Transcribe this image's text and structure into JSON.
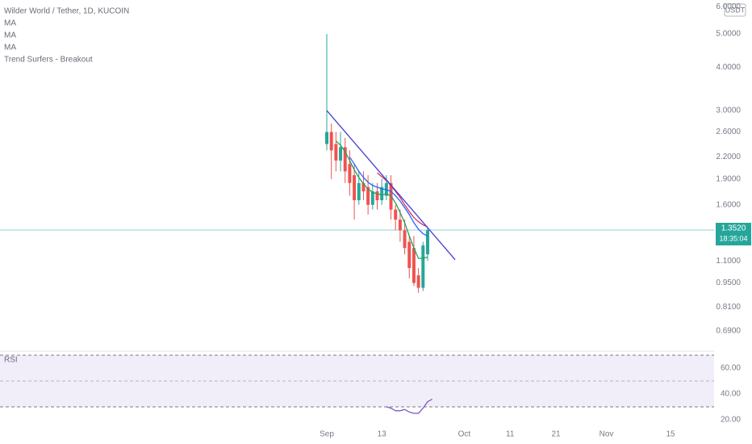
{
  "chart_data": [
    {
      "type": "candlestick",
      "title": "Wilder World / Tether, 1D, KUCOIN",
      "indicators": [
        "MA",
        "MA",
        "MA",
        "Trend Surfers - Breakout"
      ],
      "currency": "USDT",
      "log_scale": true,
      "x": [
        0,
        1,
        2,
        3,
        4,
        5,
        6,
        7,
        8,
        9,
        10,
        11,
        12,
        13,
        14,
        15,
        16,
        17,
        18,
        19,
        20,
        21,
        22
      ],
      "open": [
        2.4,
        2.6,
        2.4,
        2.15,
        2.35,
        2.1,
        1.95,
        1.65,
        1.85,
        1.8,
        1.6,
        1.75,
        1.65,
        1.7,
        1.85,
        1.55,
        1.45,
        1.35,
        1.25,
        1.2,
        1.0,
        0.92,
        1.15
      ],
      "high": [
        5.0,
        2.75,
        2.6,
        2.6,
        2.5,
        2.3,
        2.1,
        2.0,
        2.0,
        1.95,
        1.85,
        1.85,
        1.9,
        1.95,
        1.95,
        1.6,
        1.55,
        1.45,
        1.3,
        1.3,
        1.05,
        1.25,
        1.37
      ],
      "low": [
        2.3,
        1.9,
        2.0,
        2.0,
        1.85,
        1.7,
        1.45,
        1.6,
        1.65,
        1.5,
        1.55,
        1.55,
        1.6,
        1.65,
        1.45,
        1.35,
        1.25,
        1.15,
        0.98,
        0.93,
        0.89,
        0.9,
        1.1
      ],
      "close": [
        2.6,
        2.3,
        2.15,
        2.35,
        2.0,
        1.85,
        1.65,
        1.85,
        1.75,
        1.6,
        1.75,
        1.65,
        1.8,
        1.85,
        1.55,
        1.45,
        1.35,
        1.2,
        1.05,
        0.95,
        0.92,
        1.22,
        1.352
      ],
      "up_color": "#26a69a",
      "down_color": "#ef5350",
      "series": [
        {
          "color": "#22a05a",
          "values": [
            null,
            null,
            2.45,
            2.38,
            2.28,
            2.15,
            2.02,
            1.92,
            1.84,
            1.78,
            1.74,
            1.72,
            1.71,
            1.72,
            1.7,
            1.62,
            1.52,
            1.42,
            1.3,
            1.2,
            1.12,
            1.12,
            1.13
          ]
        },
        {
          "color": "#2962ff",
          "values": [
            null,
            null,
            null,
            null,
            null,
            2.2,
            2.1,
            2.0,
            1.92,
            1.86,
            1.82,
            1.8,
            1.78,
            1.77,
            1.75,
            1.7,
            1.64,
            1.57,
            1.5,
            1.42,
            1.36,
            1.32,
            1.3
          ]
        },
        {
          "color": "#e0305a",
          "values": [
            null,
            null,
            null,
            null,
            null,
            null,
            null,
            null,
            null,
            null,
            null,
            1.98,
            1.93,
            1.88,
            1.82,
            1.75,
            1.68,
            1.6,
            1.53,
            1.47,
            1.43,
            1.4,
            1.38
          ]
        }
      ],
      "trend_line": {
        "color": "#3f3fd4",
        "x": [
          0,
          28
        ],
        "values": [
          3.0,
          1.11
        ]
      },
      "current_price": {
        "value": 1.352,
        "label": "1.3520"
      },
      "countdown": "18:35:04",
      "xlim": [
        -71.3,
        84.5
      ],
      "xticks": [
        {
          "value": 0,
          "label": "Sep"
        },
        {
          "value": 12,
          "label": "13"
        },
        {
          "value": 30,
          "label": "Oct"
        },
        {
          "value": 40,
          "label": "11"
        },
        {
          "value": 50,
          "label": "21"
        },
        {
          "value": 61,
          "label": "Nov"
        },
        {
          "value": 75,
          "label": "15"
        }
      ],
      "ylim": [
        0.603,
        6.27
      ],
      "yticks": [
        {
          "value": 6,
          "label": "6.0000"
        },
        {
          "value": 5,
          "label": "5.0000"
        },
        {
          "value": 4,
          "label": "4.0000"
        },
        {
          "value": 3,
          "label": "3.0000"
        },
        {
          "value": 2.6,
          "label": "2.6000"
        },
        {
          "value": 2.2,
          "label": "2.2000"
        },
        {
          "value": 1.9,
          "label": "1.9000"
        },
        {
          "value": 1.6,
          "label": "1.6000"
        },
        {
          "value": 1.1,
          "label": "1.1000"
        },
        {
          "value": 0.95,
          "label": "0.9500"
        },
        {
          "value": 0.81,
          "label": "0.8100"
        },
        {
          "value": 0.69,
          "label": "0.6900"
        }
      ]
    },
    {
      "type": "line",
      "title": "RSI",
      "x": [
        13,
        14,
        15,
        16,
        17,
        18,
        19,
        20,
        21,
        22,
        23
      ],
      "series": [
        {
          "color": "#7e57c2",
          "values": [
            30,
            29,
            27,
            27,
            28,
            26,
            25,
            25,
            29,
            34,
            36
          ]
        }
      ],
      "band": [
        30,
        70
      ],
      "midline": 50,
      "ylim": [
        7.5,
        73.1
      ],
      "yticks": [
        {
          "value": 60,
          "label": "60.00"
        },
        {
          "value": 40,
          "label": "40.00"
        },
        {
          "value": 20,
          "label": "20.00"
        }
      ]
    }
  ]
}
